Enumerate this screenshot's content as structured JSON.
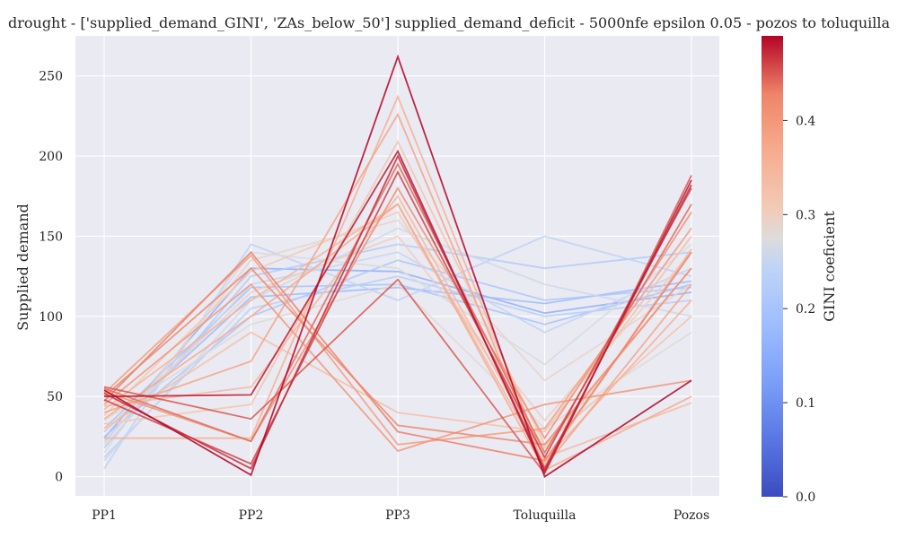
{
  "chart_data": {
    "type": "line",
    "title": "drought - ['supplied_demand_GINI', 'ZAs_below_50'] supplied_demand_deficit  - 5000nfe epsilon 0.05 - pozos to toluquilla",
    "xlabel": "",
    "ylabel": "Supplied demand",
    "categories": [
      "PP1",
      "PP2",
      "PP3",
      "Toluquilla",
      "Pozos"
    ],
    "ylim": [
      -12,
      275
    ],
    "yticks": [
      0,
      50,
      100,
      150,
      200,
      250
    ],
    "grid": true,
    "colorbar": {
      "label": "GINI coeficient",
      "range": [
        0.0,
        0.49
      ],
      "ticks": [
        "0.0",
        "0.1",
        "0.2",
        "0.3",
        "0.4"
      ],
      "tick_values": [
        0.0,
        0.1,
        0.2,
        0.3,
        0.4
      ],
      "colormap": "coolwarm"
    },
    "series": [
      {
        "gini": 0.49,
        "values": [
          54,
          1,
          262,
          0,
          60
        ]
      },
      {
        "gini": 0.48,
        "values": [
          50,
          51,
          203,
          3,
          185
        ]
      },
      {
        "gini": 0.47,
        "values": [
          52,
          5,
          200,
          5,
          182
        ]
      },
      {
        "gini": 0.46,
        "values": [
          48,
          8,
          190,
          12,
          180
        ]
      },
      {
        "gini": 0.45,
        "values": [
          56,
          36,
          123,
          2,
          188
        ]
      },
      {
        "gini": 0.44,
        "values": [
          55,
          22,
          195,
          15,
          170
        ]
      },
      {
        "gini": 0.43,
        "values": [
          47,
          140,
          28,
          10,
          140
        ]
      },
      {
        "gini": 0.42,
        "values": [
          50,
          130,
          32,
          20,
          130
        ]
      },
      {
        "gini": 0.41,
        "values": [
          53,
          22,
          180,
          24,
          165
        ]
      },
      {
        "gini": 0.4,
        "values": [
          45,
          120,
          16,
          45,
          60
        ]
      },
      {
        "gini": 0.39,
        "values": [
          52,
          138,
          20,
          30,
          155
        ]
      },
      {
        "gini": 0.38,
        "values": [
          40,
          72,
          226,
          6,
          120
        ]
      },
      {
        "gini": 0.37,
        "values": [
          36,
          100,
          170,
          4,
          50
        ]
      },
      {
        "gini": 0.36,
        "values": [
          24,
          24,
          237,
          10,
          110
        ]
      },
      {
        "gini": 0.35,
        "values": [
          42,
          110,
          170,
          8,
          142
        ]
      },
      {
        "gini": 0.34,
        "values": [
          44,
          56,
          175,
          12,
          46
        ]
      },
      {
        "gini": 0.33,
        "values": [
          30,
          90,
          40,
          28,
          150
        ]
      },
      {
        "gini": 0.32,
        "values": [
          33,
          45,
          209,
          20,
          100
        ]
      },
      {
        "gini": 0.31,
        "values": [
          38,
          128,
          165,
          18,
          130
        ]
      },
      {
        "gini": 0.3,
        "values": [
          28,
          115,
          150,
          35,
          140
        ]
      },
      {
        "gini": 0.29,
        "values": [
          20,
          135,
          160,
          60,
          120
        ]
      },
      {
        "gini": 0.28,
        "values": [
          35,
          95,
          120,
          30,
          90
        ]
      },
      {
        "gini": 0.27,
        "values": [
          15,
          140,
          130,
          70,
          145
        ]
      },
      {
        "gini": 0.26,
        "values": [
          10,
          110,
          155,
          120,
          100
        ]
      },
      {
        "gini": 0.25,
        "values": [
          22,
          120,
          140,
          90,
          130
        ]
      },
      {
        "gini": 0.24,
        "values": [
          5,
          145,
          110,
          150,
          125
        ]
      },
      {
        "gini": 0.23,
        "values": [
          12,
          105,
          125,
          100,
          110
        ]
      },
      {
        "gini": 0.22,
        "values": [
          18,
          125,
          145,
          130,
          140
        ]
      },
      {
        "gini": 0.21,
        "values": [
          25,
          100,
          135,
          110,
          118
        ]
      },
      {
        "gini": 0.2,
        "values": [
          30,
          118,
          120,
          95,
          120
        ]
      },
      {
        "gini": 0.18,
        "values": [
          28,
          112,
          118,
          108,
          122
        ]
      },
      {
        "gini": 0.16,
        "values": [
          24,
          130,
          128,
          102,
          115
        ]
      }
    ]
  }
}
